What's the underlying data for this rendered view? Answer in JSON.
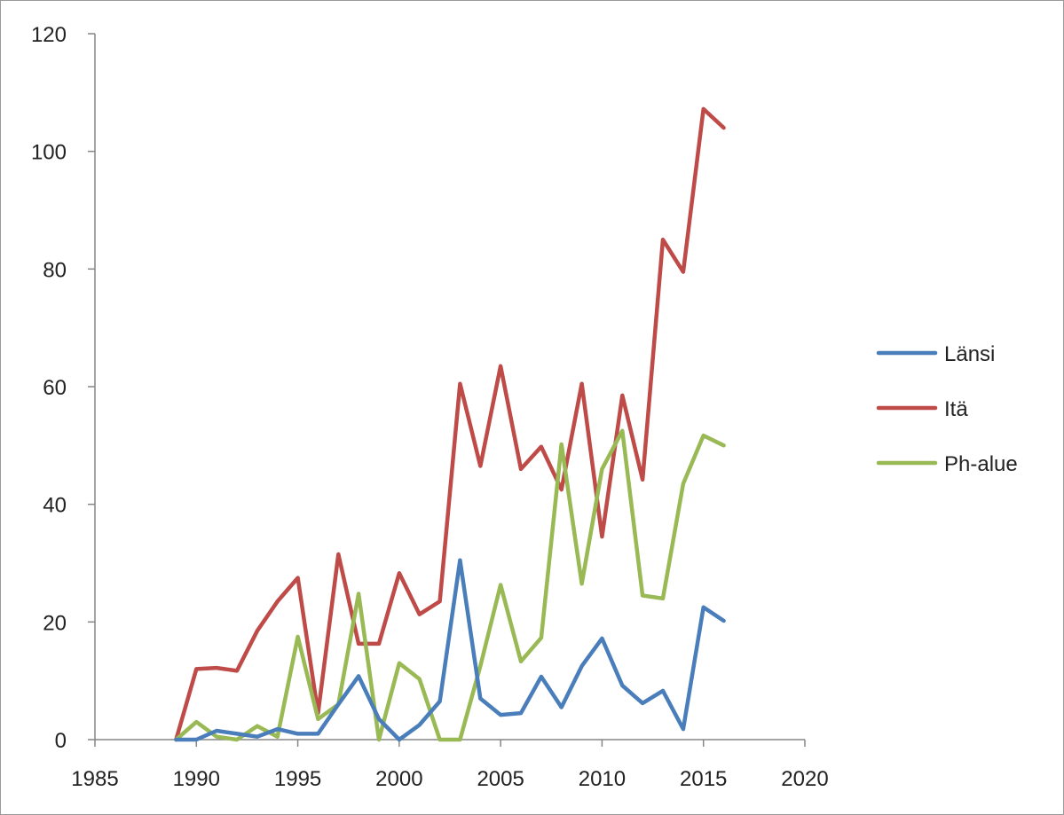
{
  "chart_data": {
    "type": "line",
    "title": "",
    "xlabel": "",
    "ylabel": "",
    "xlim": [
      1985,
      2020
    ],
    "ylim": [
      0,
      120
    ],
    "xticks": [
      1985,
      1990,
      1995,
      2000,
      2005,
      2010,
      2015,
      2020
    ],
    "yticks": [
      0,
      20,
      40,
      60,
      80,
      100,
      120
    ],
    "grid": false,
    "legend_position": "right",
    "x": [
      1989,
      1990,
      1991,
      1992,
      1993,
      1994,
      1995,
      1996,
      1997,
      1998,
      1999,
      2000,
      2001,
      2002,
      2003,
      2004,
      2005,
      2006,
      2007,
      2008,
      2009,
      2010,
      2011,
      2012,
      2013,
      2014,
      2015,
      2016
    ],
    "series": [
      {
        "name": "Länsi",
        "color": "#4a7ebb",
        "values": [
          0,
          0,
          1.5,
          1,
          0.5,
          1.8,
          1,
          1,
          6,
          10.8,
          3.5,
          0,
          2.5,
          6.5,
          30.5,
          7,
          4.2,
          4.5,
          10.7,
          5.5,
          12.5,
          17.2,
          9.2,
          6.2,
          8.3,
          1.8,
          22.5,
          20.2
        ]
      },
      {
        "name": "Itä",
        "color": "#be4b48",
        "values": [
          0,
          12,
          12.2,
          11.7,
          18.5,
          23.5,
          27.5,
          4.5,
          31.5,
          16.3,
          16.3,
          28.3,
          21.3,
          23.5,
          60.5,
          46.5,
          63.5,
          46,
          49.8,
          42.5,
          60.5,
          34.5,
          58.5,
          44.2,
          85,
          79.5,
          107.2,
          104
        ]
      },
      {
        "name": "Ph-alue",
        "color": "#98b954",
        "values": [
          0,
          3,
          0.5,
          0,
          2.3,
          0.5,
          17.5,
          3.5,
          6,
          24.8,
          0,
          13,
          10.3,
          0,
          0,
          12.5,
          26.3,
          13.3,
          17.3,
          50.2,
          26.5,
          46,
          52.5,
          24.5,
          24,
          43.5,
          51.7,
          50
        ]
      }
    ]
  }
}
